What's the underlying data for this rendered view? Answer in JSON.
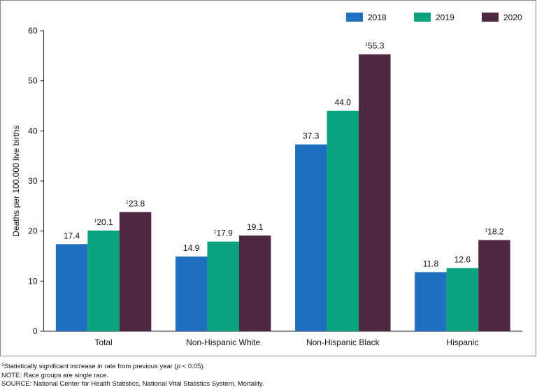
{
  "chart_data": {
    "type": "bar",
    "y_label": "Deaths per 100,000 live births",
    "categories": [
      "Total",
      "Non-Hispanic White",
      "Non-Hispanic Black",
      "Hispanic"
    ],
    "series": [
      {
        "name": "2018",
        "color": "#1f70c1",
        "values": [
          17.4,
          14.9,
          37.3,
          11.8
        ],
        "value_labels": [
          "17.4",
          "14.9",
          "37.3",
          "11.8"
        ],
        "notes": [
          null,
          null,
          null,
          null
        ]
      },
      {
        "name": "2019",
        "color": "#0ba37f",
        "values": [
          20.1,
          17.9,
          44.0,
          12.6
        ],
        "value_labels": [
          "20.1",
          "17.9",
          "44.0",
          "12.6"
        ],
        "notes": [
          "1",
          "1",
          null,
          null
        ]
      },
      {
        "name": "2020",
        "color": "#4d2840",
        "values": [
          23.8,
          19.1,
          55.3,
          18.2
        ],
        "value_labels": [
          "23.8",
          "19.1",
          "55.3",
          "18.2"
        ],
        "notes": [
          "1",
          null,
          "1",
          "1"
        ]
      }
    ],
    "ylim": [
      0,
      60
    ],
    "yticks": [
      0,
      10,
      20,
      30,
      40,
      50,
      60
    ],
    "grid": false,
    "legend": "top-right",
    "footnote": {
      "marker": "1",
      "before": "Statistically significant increase in rate from previous year (",
      "italic": "p",
      "after": " < 0.05)."
    },
    "note": "NOTE: Race groups are single race.",
    "source": "SOURCE: National Center for Health Statistics, National Vital Statistics System, Mortality."
  }
}
